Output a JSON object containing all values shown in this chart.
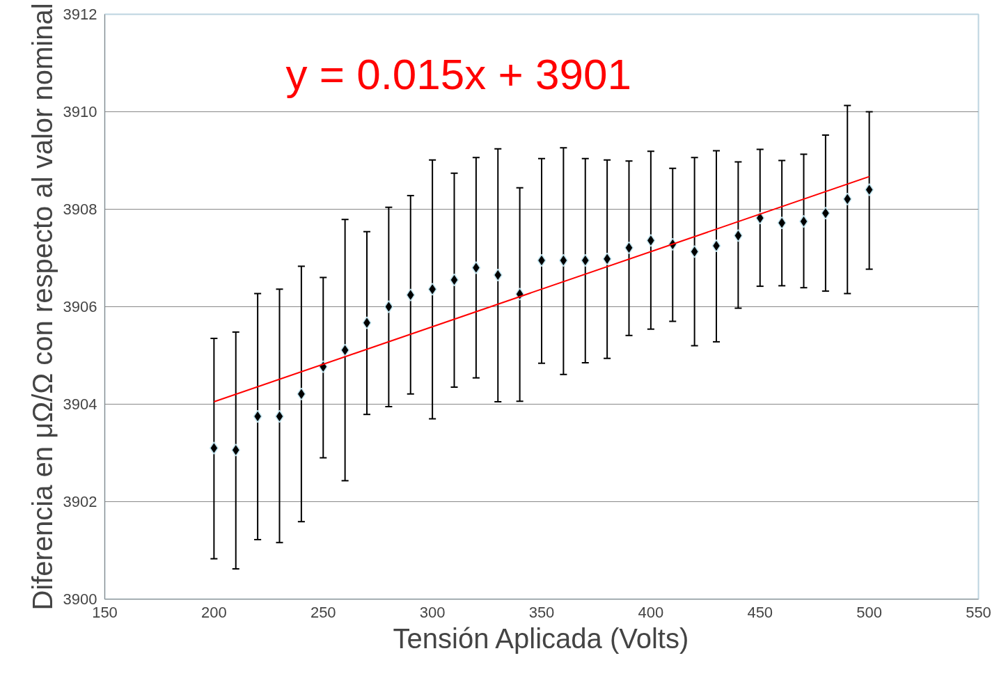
{
  "chart_data": {
    "type": "scatter",
    "xlabel": "Tensión Aplicada (Volts)",
    "ylabel": "Diferencia en μΩ/Ω con respecto al valor nominal",
    "annotations": [
      "y = 0.015x + 3901"
    ],
    "xlim": [
      150,
      550
    ],
    "xticks": [
      150,
      200,
      250,
      300,
      350,
      400,
      450,
      500,
      550
    ],
    "ylim": [
      3900,
      3912
    ],
    "yticks": [
      3900,
      3902,
      3904,
      3906,
      3908,
      3910,
      3912
    ],
    "grid": "y",
    "series": [
      {
        "marker": "diamond",
        "color": "#000000",
        "x": [
          200,
          210,
          220,
          230,
          240,
          250,
          260,
          270,
          280,
          290,
          300,
          310,
          320,
          330,
          340,
          350,
          360,
          370,
          380,
          390,
          400,
          410,
          420,
          430,
          440,
          450,
          460,
          470,
          480,
          490,
          500
        ],
        "values": [
          3903.1,
          3903.06,
          3903.75,
          3903.75,
          3904.21,
          3904.77,
          3905.11,
          3905.67,
          3906.0,
          3906.24,
          3906.36,
          3906.55,
          3906.8,
          3906.65,
          3906.26,
          3906.95,
          3906.95,
          3906.95,
          3906.98,
          3907.21,
          3907.36,
          3907.28,
          3907.13,
          3907.25,
          3907.46,
          3907.82,
          3907.72,
          3907.75,
          3907.92,
          3908.21,
          3908.4
        ],
        "errors": [
          [
            3900.83,
            3905.35
          ],
          [
            3900.62,
            3905.48
          ],
          [
            3901.22,
            3906.27
          ],
          [
            3901.16,
            3906.36
          ],
          [
            3901.59,
            3906.83
          ],
          [
            3902.9,
            3906.6
          ],
          [
            3902.43,
            3907.79
          ],
          [
            3903.79,
            3907.54
          ],
          [
            3903.95,
            3908.04
          ],
          [
            3904.21,
            3908.28
          ],
          [
            3903.7,
            3909.01
          ],
          [
            3904.35,
            3908.74
          ],
          [
            3904.54,
            3909.06
          ],
          [
            3904.05,
            3909.24
          ],
          [
            3904.06,
            3908.44
          ],
          [
            3904.84,
            3909.04
          ],
          [
            3904.61,
            3909.26
          ],
          [
            3904.85,
            3909.04
          ],
          [
            3904.94,
            3909.01
          ],
          [
            3905.41,
            3908.99
          ],
          [
            3905.54,
            3909.19
          ],
          [
            3905.7,
            3908.84
          ],
          [
            3905.2,
            3909.06
          ],
          [
            3905.28,
            3909.2
          ],
          [
            3905.97,
            3908.97
          ],
          [
            3906.42,
            3909.23
          ],
          [
            3906.43,
            3909.0
          ],
          [
            3906.39,
            3909.13
          ],
          [
            3906.32,
            3909.52
          ],
          [
            3906.27,
            3910.13
          ],
          [
            3906.77,
            3910.0
          ]
        ]
      },
      {
        "type": "line",
        "color": "#ff0000",
        "x": [
          200,
          500
        ],
        "values": [
          3904.05,
          3908.67
        ]
      }
    ]
  }
}
